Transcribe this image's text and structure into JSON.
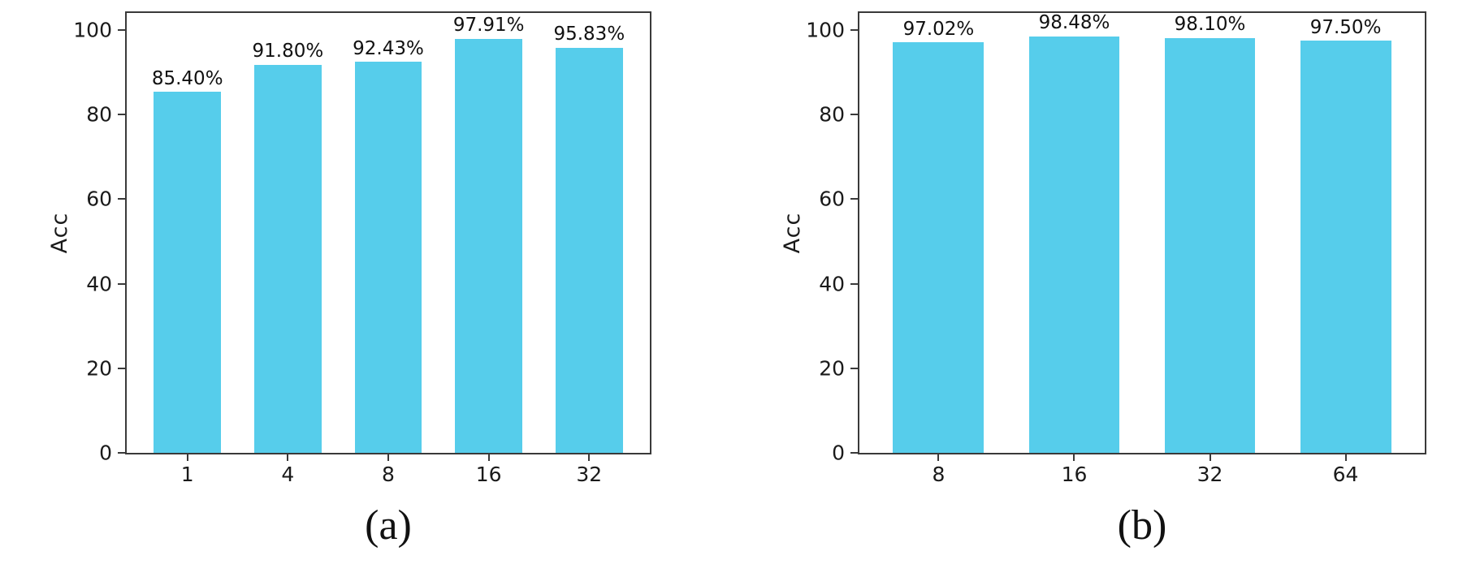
{
  "style": {
    "bar_color": "#56cdeb",
    "spine_color": "#3a3a3a",
    "text_color": "#1a1a1a",
    "background": "#ffffff"
  },
  "chart_data": [
    {
      "type": "bar",
      "title": "",
      "caption": "(a)",
      "xlabel": "",
      "ylabel": "Acc",
      "categories": [
        "1",
        "4",
        "8",
        "16",
        "32"
      ],
      "values": [
        85.4,
        91.8,
        92.43,
        97.91,
        95.83
      ],
      "bar_labels": [
        "85.40%",
        "91.80%",
        "92.43%",
        "97.91%",
        "95.83%"
      ],
      "yticks": [
        0,
        20,
        40,
        60,
        80,
        100
      ],
      "ylim": [
        0,
        104
      ],
      "bar_color": "#56cdeb",
      "grid": false,
      "legend": "none"
    },
    {
      "type": "bar",
      "title": "",
      "caption": "(b)",
      "xlabel": "",
      "ylabel": "Acc",
      "categories": [
        "8",
        "16",
        "32",
        "64"
      ],
      "values": [
        97.02,
        98.48,
        98.1,
        97.5
      ],
      "bar_labels": [
        "97.02%",
        "98.48%",
        "98.10%",
        "97.50%"
      ],
      "yticks": [
        0,
        20,
        40,
        60,
        80,
        100
      ],
      "ylim": [
        0,
        104
      ],
      "bar_color": "#56cdeb",
      "grid": false,
      "legend": "none"
    }
  ]
}
